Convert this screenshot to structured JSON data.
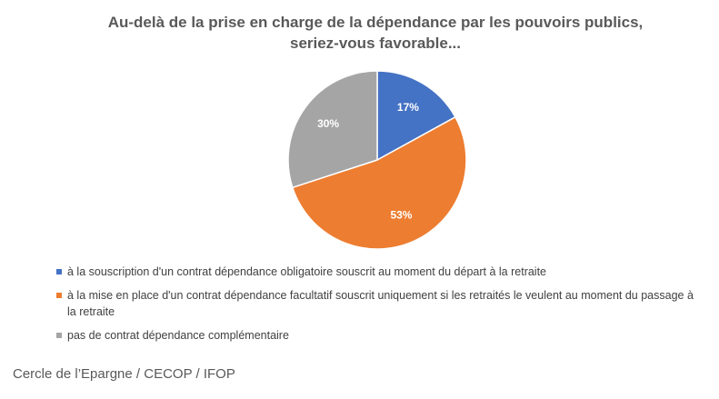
{
  "chart_data": {
    "type": "pie",
    "title": [
      "Au-delà de la prise en charge de la dépendance par les pouvoirs publics,",
      "seriez-vous favorable..."
    ],
    "categories": [
      "à la souscription d'un contrat dépendance obligatoire souscrit au moment du départ à la retraite",
      "à la mise en place d'un contrat dépendance facultatif souscrit uniquement si les retraités le veulent au moment du passage à la retraite",
      "pas de contrat dépendance complémentaire"
    ],
    "values": [
      17,
      53,
      30
    ],
    "value_labels": [
      "17%",
      "53%",
      "30%"
    ],
    "colors": [
      "#4472c4",
      "#ed7d31",
      "#a5a5a5"
    ],
    "source": "Cercle de l’Epargne / CECOP / IFOP"
  }
}
